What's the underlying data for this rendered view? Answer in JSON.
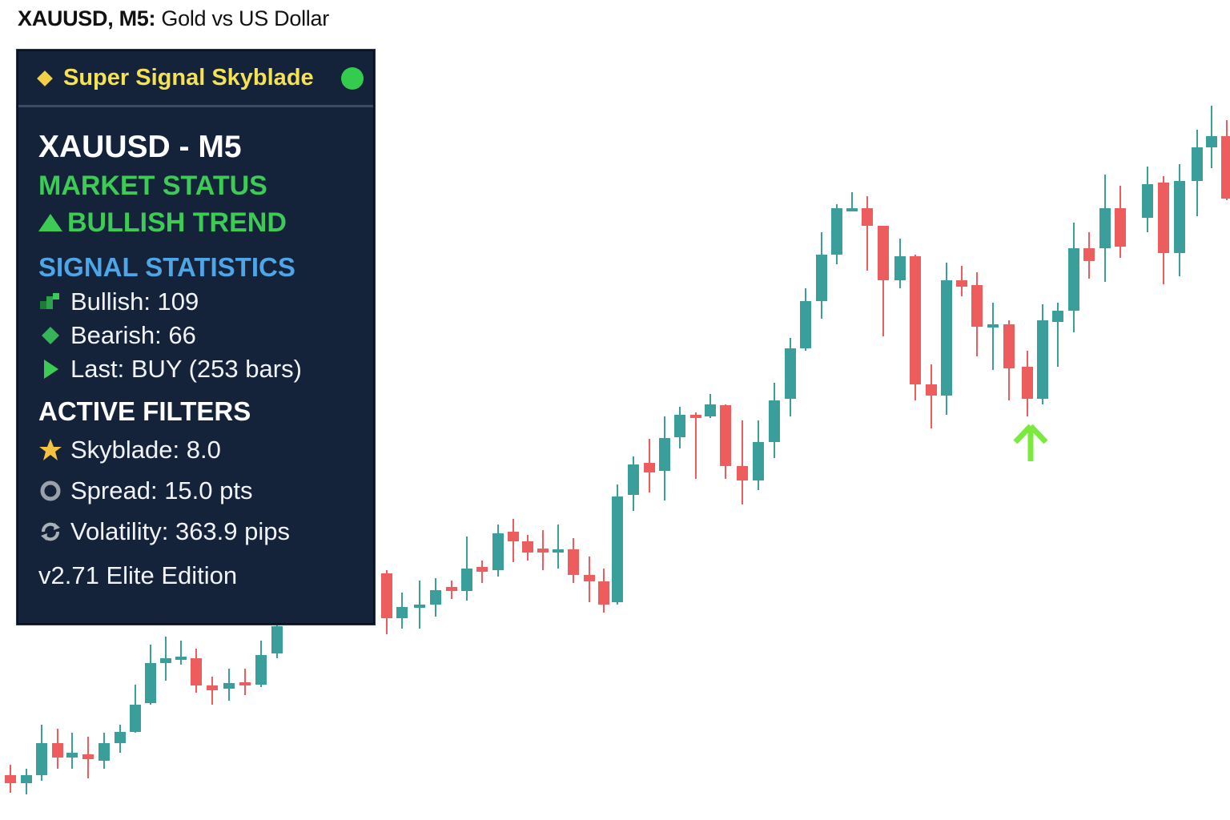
{
  "chart": {
    "symbol_tf": "XAUUSD, M5:",
    "description": "Gold vs US Dollar",
    "bull_color": "#3a9e9a",
    "bear_color": "#ee5d5d",
    "signal_arrow_color": "#7bea3f"
  },
  "panel": {
    "title": "Super Signal Skyblade",
    "status_color": "#33cc4e",
    "symbol_tf": "XAUUSD - M5",
    "market_status_label": "MARKET STATUS",
    "trend_label": "BULLISH TREND",
    "signal_stats_label": "SIGNAL STATISTICS",
    "stats": {
      "bullish": "Bullish: 109",
      "bearish": "Bearish: 66",
      "last": "Last: BUY (253 bars)"
    },
    "filters_label": "ACTIVE FILTERS",
    "filters": {
      "skyblade": "Skyblade: 8.0",
      "spread": "Spread: 15.0 pts",
      "volatility": "Volatility: 363.9 pips"
    },
    "version": "v2.71 Elite Edition"
  }
}
